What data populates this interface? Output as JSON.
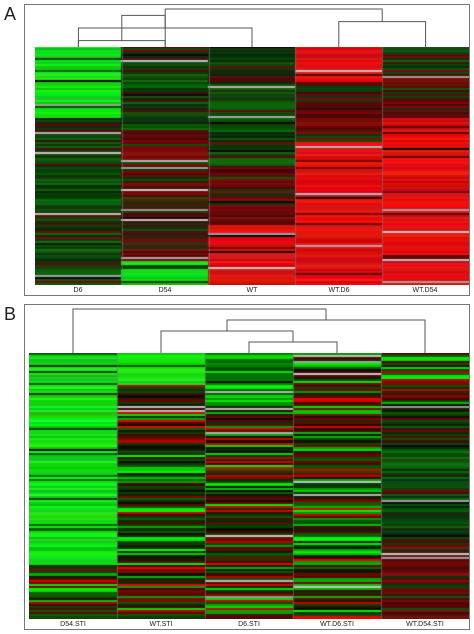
{
  "panels": [
    {
      "letter": "A",
      "columns": [
        "D6",
        "D54",
        "WT",
        "WT.D6",
        "WT.D54"
      ],
      "column_profiles": [
        [
          [
            0,
            0.3,
            "bg"
          ],
          [
            0.3,
            1,
            "dg"
          ]
        ],
        [
          [
            0,
            0.35,
            "dg"
          ],
          [
            0.35,
            0.6,
            "dr"
          ],
          [
            0.6,
            0.9,
            "dr"
          ],
          [
            0.9,
            1,
            "bg"
          ]
        ],
        [
          [
            0,
            0.5,
            "dg"
          ],
          [
            0.5,
            0.75,
            "dr"
          ],
          [
            0.75,
            1,
            "br"
          ]
        ],
        [
          [
            0,
            0.15,
            "br"
          ],
          [
            0.15,
            0.4,
            "dr"
          ],
          [
            0.4,
            1,
            "br"
          ]
        ],
        [
          [
            0,
            0.1,
            "dg"
          ],
          [
            0.1,
            0.3,
            "dr"
          ],
          [
            0.3,
            1,
            "br"
          ]
        ]
      ],
      "rows": 120,
      "seed": 7,
      "tree": [
        [
          1,
          0
        ],
        [
          1,
          1
        ],
        [
          0,
          2
        ],
        [
          3,
          4
        ],
        [
          5,
          6
        ],
        [
          8,
          7
        ]
      ]
    },
    {
      "letter": "B",
      "columns": [
        "D54.STI",
        "WT.STI",
        "D6.STI",
        "WT.D6.STI",
        "WT.D54.STI"
      ],
      "column_profiles": [
        [
          [
            0,
            0.8,
            "bg"
          ],
          [
            0.8,
            1,
            "mix"
          ]
        ],
        [
          [
            0,
            0.12,
            "bg"
          ],
          [
            0.12,
            1,
            "mix"
          ]
        ],
        [
          [
            0,
            0.2,
            "mg"
          ],
          [
            0.2,
            1,
            "mix"
          ]
        ],
        [
          [
            0,
            0.3,
            "mix"
          ],
          [
            0.3,
            1,
            "mix"
          ]
        ],
        [
          [
            0,
            0.25,
            "mix"
          ],
          [
            0.25,
            0.7,
            "dg"
          ],
          [
            0.7,
            1,
            "dr"
          ]
        ]
      ],
      "rows": 130,
      "seed": 42,
      "tree": [
        [
          2,
          3
        ],
        [
          1,
          5
        ],
        [
          4,
          6
        ],
        [
          0,
          7
        ]
      ]
    }
  ]
}
